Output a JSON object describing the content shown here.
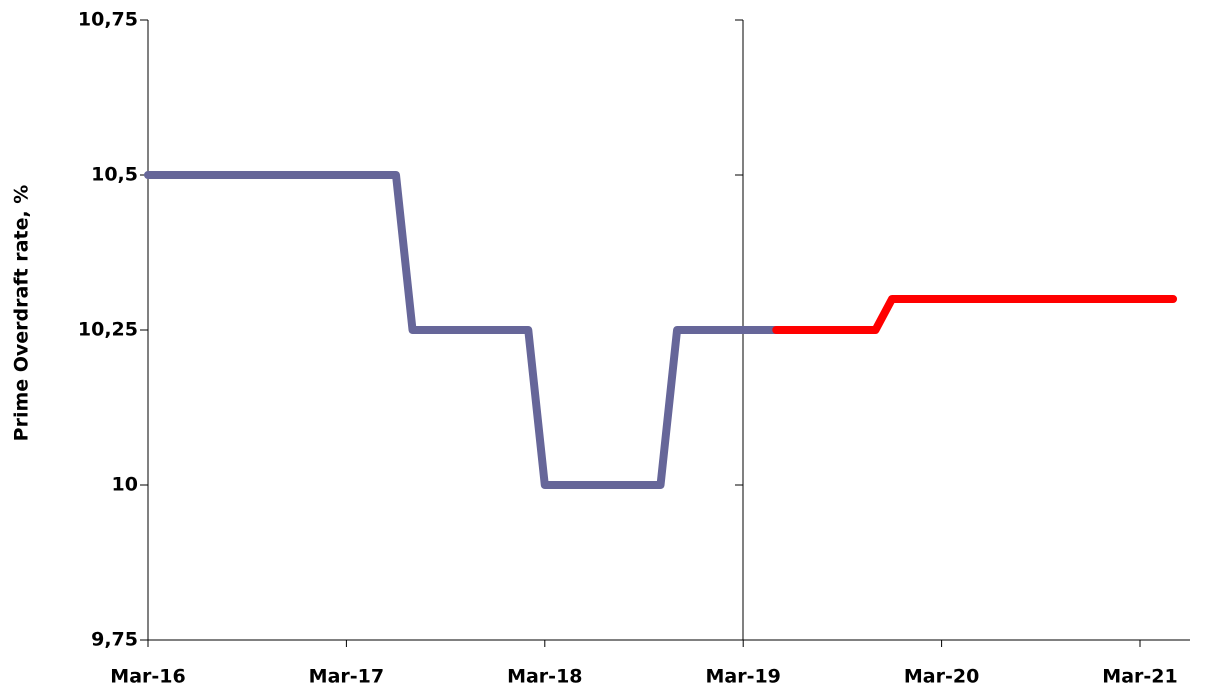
{
  "chart_data": {
    "type": "line",
    "y_label": "Prime Overdraft rate, %",
    "categories": [
      "Mar-16",
      null,
      null,
      null,
      null,
      null,
      null,
      null,
      null,
      null,
      null,
      null,
      "Mar-17",
      null,
      null,
      null,
      null,
      null,
      null,
      null,
      null,
      null,
      null,
      null,
      "Mar-18",
      null,
      null,
      null,
      null,
      null,
      null,
      null,
      null,
      null,
      null,
      null,
      "Mar-19",
      null,
      null,
      null,
      null,
      null,
      null,
      null,
      null,
      null,
      null,
      null,
      "Mar-20",
      null,
      null,
      null,
      null,
      null,
      null,
      null,
      null,
      null,
      null,
      null,
      "Mar-21",
      null,
      null
    ],
    "series": [
      {
        "color": "#666699",
        "values": [
          10.5,
          10.5,
          10.5,
          10.5,
          10.5,
          10.5,
          10.5,
          10.5,
          10.5,
          10.5,
          10.5,
          10.5,
          10.5,
          10.5,
          10.5,
          10.5,
          10.25,
          10.25,
          10.25,
          10.25,
          10.25,
          10.25,
          10.25,
          10.25,
          10,
          10,
          10,
          10,
          10,
          10,
          10,
          10,
          10.25,
          10.25,
          10.25,
          10.25,
          10.25,
          10.25,
          10.25,
          null,
          null,
          null,
          null,
          null,
          null,
          null,
          null,
          null,
          null,
          null,
          null,
          null,
          null,
          null,
          null,
          null,
          null,
          null,
          null,
          null,
          null,
          null,
          null
        ]
      },
      {
        "color": "#ff0000",
        "values": [
          null,
          null,
          null,
          null,
          null,
          null,
          null,
          null,
          null,
          null,
          null,
          null,
          null,
          null,
          null,
          null,
          null,
          null,
          null,
          null,
          null,
          null,
          null,
          null,
          null,
          null,
          null,
          null,
          null,
          null,
          null,
          null,
          null,
          null,
          null,
          null,
          null,
          null,
          10.25,
          10.25,
          10.25,
          10.25,
          10.25,
          10.25,
          10.25,
          10.3,
          10.3,
          10.3,
          10.3,
          10.3,
          10.3,
          10.3,
          10.3,
          10.3,
          10.3,
          10.3,
          10.3,
          10.3,
          10.3,
          10.3,
          10.3,
          10.3,
          10.3
        ]
      }
    ],
    "ylim": [
      9.75,
      10.75
    ],
    "yticks": [
      {
        "value": 9.75,
        "label": "9,75"
      },
      10,
      {
        "value": 10.25,
        "label": "10,25"
      },
      {
        "value": 10.5,
        "label": "10,5"
      },
      {
        "value": 10.75,
        "label": "10,75"
      }
    ]
  }
}
